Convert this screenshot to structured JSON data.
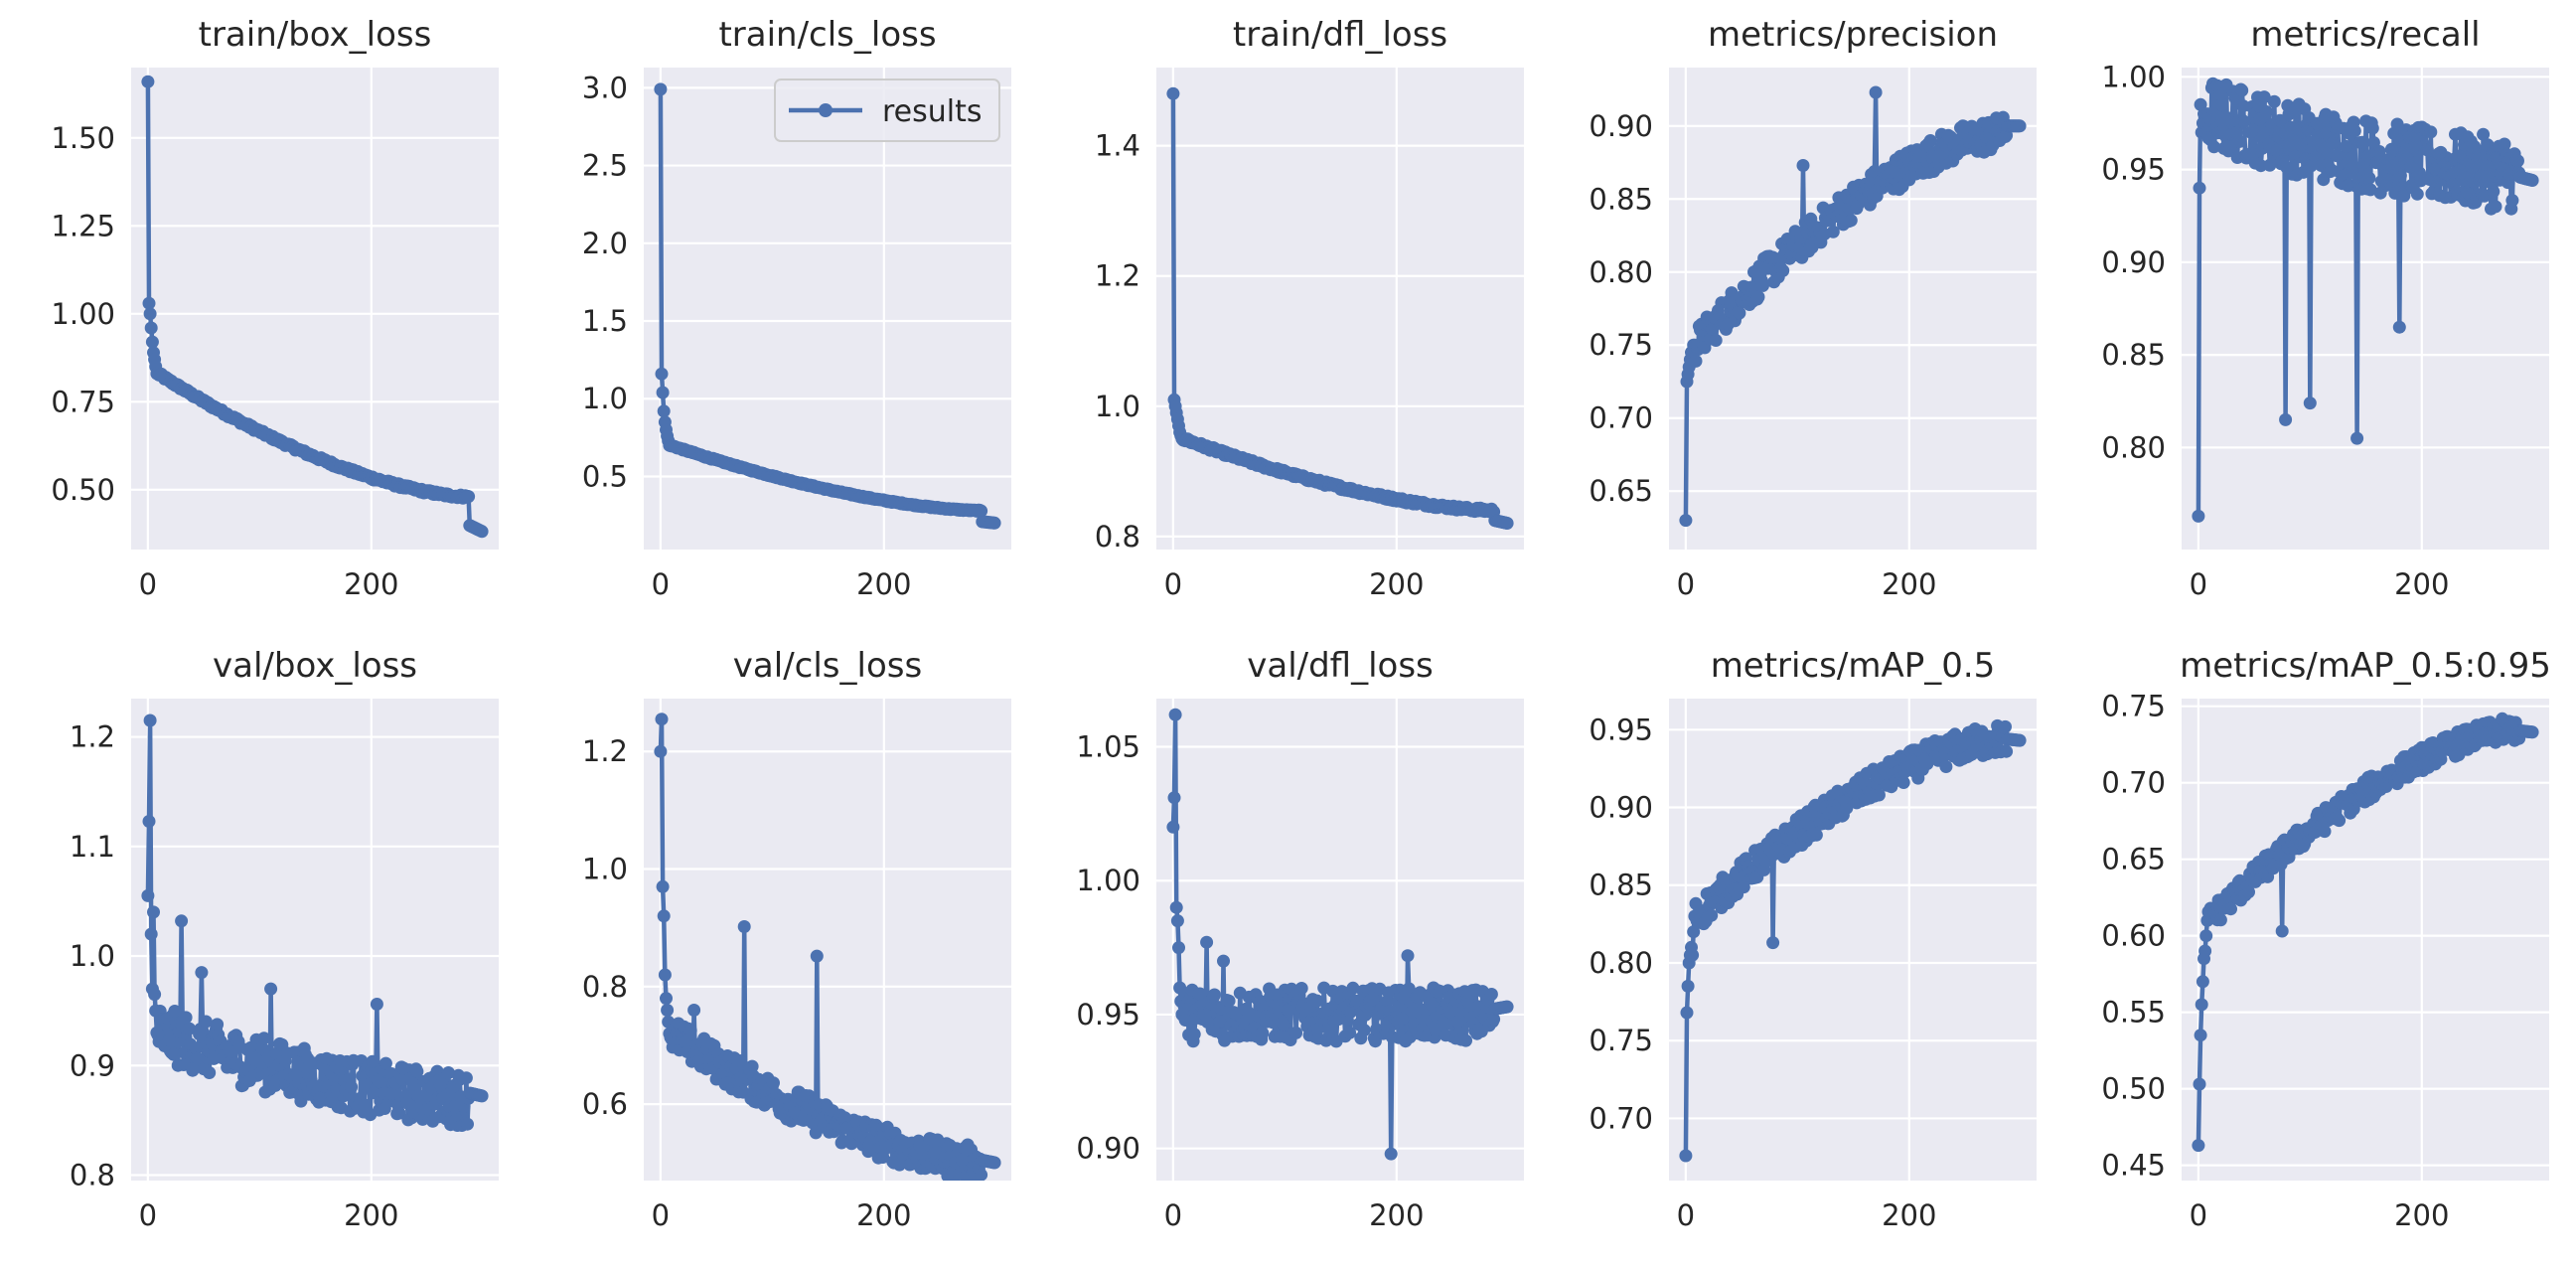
{
  "figure": {
    "background": "#ffffff",
    "axes_background": "#eaeaf2",
    "grid_color": "#ffffff",
    "line_color": "#4c72b0",
    "text_color": "#262626"
  },
  "legend": {
    "label": "results",
    "panel": 1,
    "placement": "top-right"
  },
  "chart_data": [
    {
      "type": "line",
      "title": "train/box_loss",
      "xlabel": "",
      "ylabel": "",
      "xlim": [
        -15,
        314
      ],
      "ylim": [
        0.33,
        1.7
      ],
      "xticks": [
        0,
        200
      ],
      "xtick_labels": [
        "0",
        "200"
      ],
      "yticks": [
        0.5,
        0.75,
        1.0,
        1.25,
        1.5
      ],
      "ytick_labels": [
        "0.50",
        "0.75",
        "1.00",
        "1.25",
        "1.50"
      ],
      "series": [
        {
          "name": "results",
          "start": 1.66,
          "early": [
            1.03,
            1.0,
            0.96,
            0.92,
            0.89,
            0.87,
            0.85,
            0.83
          ],
          "end": 0.48,
          "final": 0.4,
          "final2": 0.38,
          "noise": 0.005,
          "spikes": []
        }
      ]
    },
    {
      "type": "line",
      "title": "train/cls_loss",
      "xlabel": "",
      "ylabel": "",
      "xlim": [
        -15,
        314
      ],
      "ylim": [
        0.03,
        3.13
      ],
      "xticks": [
        0,
        200
      ],
      "xtick_labels": [
        "0",
        "200"
      ],
      "yticks": [
        0.5,
        1.0,
        1.5,
        2.0,
        2.5,
        3.0
      ],
      "ytick_labels": [
        "0.5",
        "1.0",
        "1.5",
        "2.0",
        "2.5",
        "3.0"
      ],
      "series": [
        {
          "name": "results",
          "start": 2.99,
          "early": [
            1.16,
            1.04,
            0.92,
            0.85,
            0.8,
            0.76,
            0.73,
            0.7
          ],
          "end": 0.28,
          "final": 0.21,
          "final2": 0.2,
          "noise": 0.004,
          "spikes": []
        }
      ]
    },
    {
      "type": "line",
      "title": "train/dfl_loss",
      "xlabel": "",
      "ylabel": "",
      "xlim": [
        -15,
        314
      ],
      "ylim": [
        0.78,
        1.52
      ],
      "xticks": [
        0,
        200
      ],
      "xtick_labels": [
        "0",
        "200"
      ],
      "yticks": [
        0.8,
        1.0,
        1.2,
        1.4
      ],
      "ytick_labels": [
        "0.8",
        "1.0",
        "1.2",
        "1.4"
      ],
      "series": [
        {
          "name": "results",
          "start": 1.48,
          "early": [
            1.01,
            1.0,
            0.99,
            0.98,
            0.97,
            0.96,
            0.955,
            0.95
          ],
          "end": 0.84,
          "final": 0.825,
          "final2": 0.82,
          "noise": 0.003,
          "spikes": []
        }
      ]
    },
    {
      "type": "line",
      "title": "metrics/precision",
      "xlabel": "",
      "ylabel": "",
      "xlim": [
        -15,
        314
      ],
      "ylim": [
        0.61,
        0.94
      ],
      "xticks": [
        0,
        200
      ],
      "xtick_labels": [
        "0",
        "200"
      ],
      "yticks": [
        0.65,
        0.7,
        0.75,
        0.8,
        0.85,
        0.9
      ],
      "ytick_labels": [
        "0.65",
        "0.70",
        "0.75",
        "0.80",
        "0.85",
        "0.90"
      ],
      "series": [
        {
          "name": "results",
          "start": 0.63,
          "early": [
            0.725,
            0.73,
            0.735,
            0.74,
            0.745,
            0.745,
            0.75,
            0.75
          ],
          "end": 0.895,
          "final": 0.9,
          "final2": 0.9,
          "noise": 0.012,
          "spikes": [
            [
              170,
              0.923
            ],
            [
              105,
              0.873
            ]
          ]
        }
      ]
    },
    {
      "type": "line",
      "title": "metrics/recall",
      "xlabel": "",
      "ylabel": "",
      "xlim": [
        -15,
        314
      ],
      "ylim": [
        0.745,
        1.005
      ],
      "xticks": [
        0,
        200
      ],
      "xtick_labels": [
        "0",
        "200"
      ],
      "yticks": [
        0.8,
        0.85,
        0.9,
        0.95,
        1.0
      ],
      "ytick_labels": [
        "0.80",
        "0.85",
        "0.90",
        "0.95",
        "1.00"
      ],
      "series": [
        {
          "name": "results",
          "start": 0.763,
          "early": [
            0.94,
            0.985,
            0.97,
            0.975,
            0.98,
            0.975,
            0.97,
            0.98
          ],
          "end": 0.948,
          "final": 0.946,
          "final2": 0.944,
          "noise": 0.02,
          "spikes": [
            [
              78,
              0.815
            ],
            [
              100,
              0.824
            ],
            [
              142,
              0.805
            ],
            [
              180,
              0.865
            ]
          ]
        }
      ]
    },
    {
      "type": "line",
      "title": "val/box_loss",
      "xlabel": "",
      "ylabel": "",
      "xlim": [
        -15,
        314
      ],
      "ylim": [
        0.795,
        1.235
      ],
      "xticks": [
        0,
        200
      ],
      "xtick_labels": [
        "0",
        "200"
      ],
      "yticks": [
        0.8,
        0.9,
        1.0,
        1.1,
        1.2
      ],
      "ytick_labels": [
        "0.8",
        "0.9",
        "1.0",
        "1.1",
        "1.2"
      ],
      "series": [
        {
          "name": "results",
          "start": 1.055,
          "early": [
            1.123,
            1.215,
            1.02,
            0.97,
            1.04,
            0.965,
            0.95,
            0.93
          ],
          "end": 0.87,
          "final": 0.875,
          "final2": 0.872,
          "noise": 0.025,
          "spikes": [
            [
              30,
              1.032
            ],
            [
              48,
              0.985
            ],
            [
              110,
              0.97
            ],
            [
              205,
              0.956
            ]
          ]
        }
      ]
    },
    {
      "type": "line",
      "title": "val/cls_loss",
      "xlabel": "",
      "ylabel": "",
      "xlim": [
        -15,
        314
      ],
      "ylim": [
        0.47,
        1.29
      ],
      "xticks": [
        0,
        200
      ],
      "xtick_labels": [
        "0",
        "200"
      ],
      "yticks": [
        0.6,
        0.8,
        1.0,
        1.2
      ],
      "ytick_labels": [
        "0.6",
        "0.8",
        "1.0",
        "1.2"
      ],
      "series": [
        {
          "name": "results",
          "start": 1.2,
          "early": [
            1.255,
            0.97,
            0.92,
            0.82,
            0.78,
            0.76,
            0.74,
            0.72
          ],
          "end": 0.5,
          "final": 0.505,
          "final2": 0.5,
          "noise": 0.03,
          "spikes": [
            [
              75,
              0.902
            ],
            [
              140,
              0.852
            ],
            [
              30,
              0.76
            ]
          ]
        }
      ]
    },
    {
      "type": "line",
      "title": "val/dfl_loss",
      "xlabel": "",
      "ylabel": "",
      "xlim": [
        -15,
        314
      ],
      "ylim": [
        0.888,
        1.068
      ],
      "xticks": [
        0,
        200
      ],
      "xtick_labels": [
        "0",
        "200"
      ],
      "yticks": [
        0.9,
        0.95,
        1.0,
        1.05
      ],
      "ytick_labels": [
        "0.90",
        "0.95",
        "1.00",
        "1.05"
      ],
      "series": [
        {
          "name": "results",
          "start": 1.02,
          "early": [
            1.031,
            1.062,
            0.99,
            0.985,
            0.975,
            0.96,
            0.955,
            0.95
          ],
          "end": 0.95,
          "final": 0.952,
          "final2": 0.953,
          "noise": 0.01,
          "spikes": [
            [
              30,
              0.977
            ],
            [
              45,
              0.97
            ],
            [
              210,
              0.972
            ],
            [
              195,
              0.898
            ]
          ]
        }
      ]
    },
    {
      "type": "line",
      "title": "metrics/mAP_0.5",
      "xlabel": "",
      "ylabel": "",
      "xlim": [
        -15,
        314
      ],
      "ylim": [
        0.66,
        0.97
      ],
      "xticks": [
        0,
        200
      ],
      "xtick_labels": [
        "0",
        "200"
      ],
      "yticks": [
        0.7,
        0.75,
        0.8,
        0.85,
        0.9,
        0.95
      ],
      "ytick_labels": [
        "0.70",
        "0.75",
        "0.80",
        "0.85",
        "0.90",
        "0.95"
      ],
      "series": [
        {
          "name": "results",
          "start": 0.676,
          "early": [
            0.768,
            0.785,
            0.8,
            0.805,
            0.81,
            0.805,
            0.82,
            0.83
          ],
          "end": 0.944,
          "final": 0.944,
          "final2": 0.943,
          "noise": 0.01,
          "spikes": [
            [
              78,
              0.813
            ]
          ]
        }
      ]
    },
    {
      "type": "line",
      "title": "metrics/mAP_0.5:0.95",
      "xlabel": "",
      "ylabel": "",
      "xlim": [
        -15,
        314
      ],
      "ylim": [
        0.44,
        0.755
      ],
      "xticks": [
        0,
        200
      ],
      "xtick_labels": [
        "0",
        "200"
      ],
      "yticks": [
        0.45,
        0.5,
        0.55,
        0.6,
        0.65,
        0.7,
        0.75
      ],
      "ytick_labels": [
        "0.45",
        "0.50",
        "0.55",
        "0.60",
        "0.65",
        "0.70",
        "0.75"
      ],
      "series": [
        {
          "name": "results",
          "start": 0.463,
          "early": [
            0.503,
            0.535,
            0.555,
            0.57,
            0.585,
            0.59,
            0.6,
            0.61
          ],
          "end": 0.735,
          "final": 0.734,
          "final2": 0.733,
          "noise": 0.008,
          "spikes": [
            [
              75,
              0.603
            ]
          ]
        }
      ]
    }
  ]
}
